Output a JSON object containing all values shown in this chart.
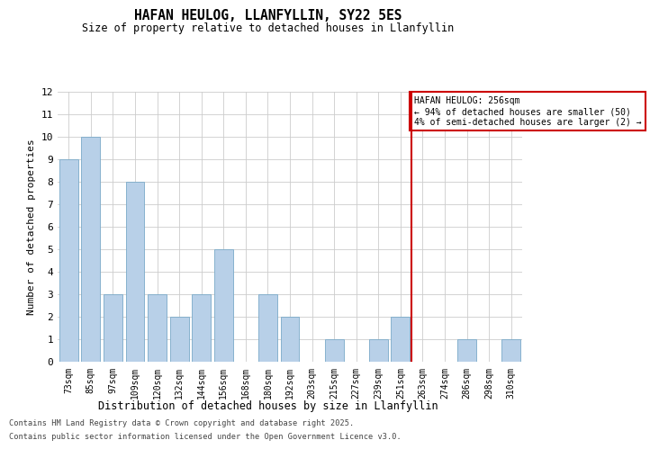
{
  "title": "HAFAN HEULOG, LLANFYLLIN, SY22 5ES",
  "subtitle": "Size of property relative to detached houses in Llanfyllin",
  "xlabel": "Distribution of detached houses by size in Llanfyllin",
  "ylabel": "Number of detached properties",
  "categories": [
    "73sqm",
    "85sqm",
    "97sqm",
    "109sqm",
    "120sqm",
    "132sqm",
    "144sqm",
    "156sqm",
    "168sqm",
    "180sqm",
    "192sqm",
    "203sqm",
    "215sqm",
    "227sqm",
    "239sqm",
    "251sqm",
    "263sqm",
    "274sqm",
    "286sqm",
    "298sqm",
    "310sqm"
  ],
  "values": [
    9,
    10,
    3,
    8,
    3,
    2,
    3,
    5,
    0,
    3,
    2,
    0,
    1,
    0,
    1,
    2,
    0,
    0,
    1,
    0,
    1
  ],
  "bar_color": "#b8d0e8",
  "bar_edge_color": "#7aaac8",
  "vline_x": 15.5,
  "vline_color": "#cc0000",
  "annotation_title": "HAFAN HEULOG: 256sqm",
  "annotation_line2": "← 94% of detached houses are smaller (50)",
  "annotation_line3": "4% of semi-detached houses are larger (2) →",
  "annotation_box_color": "#cc0000",
  "ylim": [
    0,
    12
  ],
  "yticks": [
    0,
    1,
    2,
    3,
    4,
    5,
    6,
    7,
    8,
    9,
    10,
    11,
    12
  ],
  "footer_line1": "Contains HM Land Registry data © Crown copyright and database right 2025.",
  "footer_line2": "Contains public sector information licensed under the Open Government Licence v3.0.",
  "bg_color": "#ffffff",
  "grid_color": "#cccccc"
}
